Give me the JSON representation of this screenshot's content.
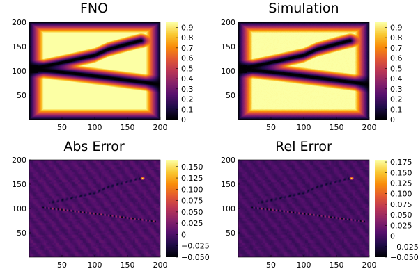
{
  "colors": {
    "colormap": "inferno",
    "background": "#ffffff",
    "axis": "#000000"
  },
  "chart_data": [
    {
      "type": "heatmap",
      "title": "FNO",
      "xlim": [
        0,
        200
      ],
      "ylim": [
        0,
        200
      ],
      "xticks": [
        50,
        100,
        150,
        200
      ],
      "yticks": [
        50,
        100,
        150,
        200
      ],
      "color_range": [
        0,
        0.95
      ],
      "colorbar_ticks": [
        0,
        0.1,
        0.2,
        0.3,
        0.4,
        0.5,
        0.6,
        0.7,
        0.8,
        0.9
      ],
      "colorbar_tick_labels": [
        "0",
        "0.1",
        "0.2",
        "0.3",
        "0.4",
        "0.5",
        "0.6",
        "0.7",
        "0.8",
        "0.9"
      ],
      "field": "prediction",
      "boundary_curve": {
        "upper_branch": [
          [
            4,
            104
          ],
          [
            60,
            120
          ],
          [
            100,
            132
          ],
          [
            120,
            144
          ],
          [
            150,
            155
          ],
          [
            170,
            162
          ]
        ],
        "lower_branch": [
          [
            4,
            104
          ],
          [
            60,
            96
          ],
          [
            120,
            86
          ],
          [
            200,
            72
          ]
        ]
      }
    },
    {
      "type": "heatmap",
      "title": "Simulation",
      "xlim": [
        0,
        200
      ],
      "ylim": [
        0,
        200
      ],
      "xticks": [
        50,
        100,
        150,
        200
      ],
      "yticks": [
        50,
        100,
        150,
        200
      ],
      "color_range": [
        0,
        0.95
      ],
      "colorbar_ticks": [
        0,
        0.1,
        0.2,
        0.3,
        0.4,
        0.5,
        0.6,
        0.7,
        0.8,
        0.9
      ],
      "colorbar_tick_labels": [
        "0",
        "0.1",
        "0.2",
        "0.3",
        "0.4",
        "0.5",
        "0.6",
        "0.7",
        "0.8",
        "0.9"
      ],
      "field": "simulation",
      "boundary_curve": {
        "upper_branch": [
          [
            4,
            104
          ],
          [
            60,
            120
          ],
          [
            100,
            132
          ],
          [
            120,
            144
          ],
          [
            150,
            155
          ],
          [
            170,
            162
          ]
        ],
        "lower_branch": [
          [
            4,
            104
          ],
          [
            60,
            96
          ],
          [
            120,
            86
          ],
          [
            200,
            72
          ]
        ]
      }
    },
    {
      "type": "heatmap",
      "title": "Abs Error",
      "xlim": [
        0,
        200
      ],
      "ylim": [
        0,
        200
      ],
      "xticks": [
        50,
        100,
        150,
        200
      ],
      "yticks": [
        50,
        100,
        150,
        200
      ],
      "color_range": [
        -0.05,
        0.165
      ],
      "colorbar_ticks": [
        -0.05,
        -0.025,
        0,
        0.025,
        0.05,
        0.075,
        0.1,
        0.125,
        0.15
      ],
      "colorbar_tick_labels": [
        "−0.050",
        "−0.025",
        "0",
        "0.025",
        "0.050",
        "0.075",
        "0.100",
        "0.125",
        "0.150"
      ],
      "field": "error",
      "hotspot": [
        173,
        162,
        0.165
      ]
    },
    {
      "type": "heatmap",
      "title": "Rel Error",
      "xlim": [
        0,
        200
      ],
      "ylim": [
        0,
        200
      ],
      "xticks": [
        50,
        100,
        150,
        200
      ],
      "yticks": [
        50,
        100,
        150,
        200
      ],
      "color_range": [
        -0.05,
        0.18
      ],
      "colorbar_ticks": [
        -0.05,
        -0.025,
        0,
        0.025,
        0.05,
        0.075,
        0.1,
        0.125,
        0.15,
        0.175
      ],
      "colorbar_tick_labels": [
        "−0.050",
        "−0.025",
        "0",
        "0.025",
        "0.050",
        "0.075",
        "0.100",
        "0.125",
        "0.150",
        "0.175"
      ],
      "field": "error",
      "hotspot": [
        173,
        162,
        0.175
      ]
    }
  ]
}
